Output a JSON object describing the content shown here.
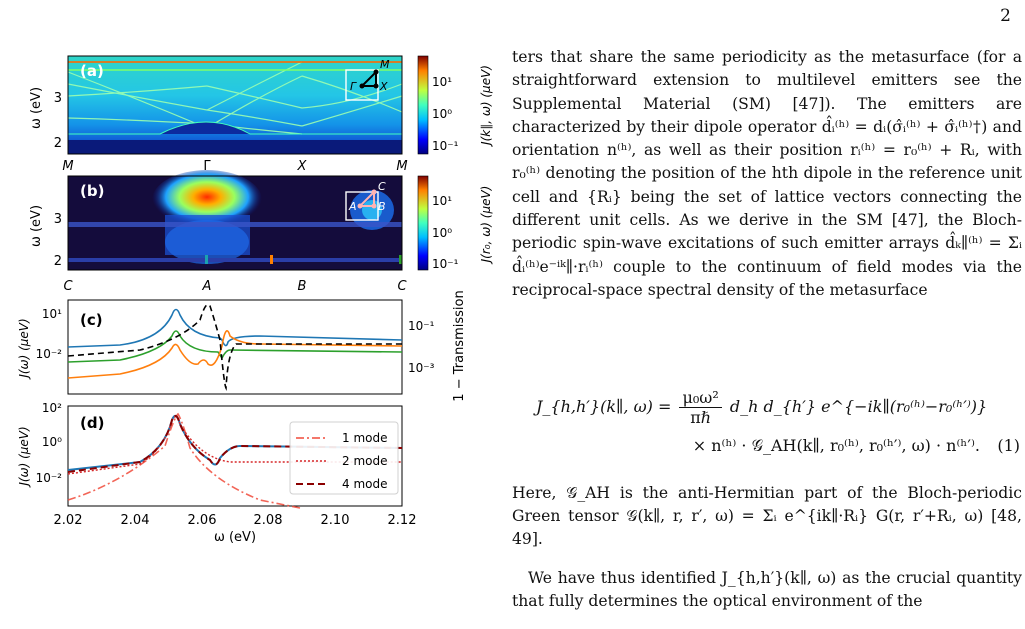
{
  "page_number": "2",
  "figure": {
    "panel_labels": [
      "(a)",
      "(b)",
      "(c)",
      "(d)"
    ],
    "a": {
      "ylabel": "ω (eV)",
      "yticks": [
        "2",
        "3"
      ],
      "xticks": [
        "M",
        "Γ",
        "X",
        "M"
      ],
      "colorbar_label": "J(k∥, ω) (μeV)",
      "colorbar_ticks": [
        "10¹",
        "10⁰",
        "10⁻¹"
      ],
      "inset_labels": [
        "Γ",
        "X",
        "M"
      ]
    },
    "b": {
      "ylabel": "ω (eV)",
      "yticks": [
        "2",
        "3"
      ],
      "xticks": [
        "C",
        "A",
        "B",
        "C"
      ],
      "colorbar_label": "J(r₀, ω) (μeV)",
      "colorbar_ticks": [
        "10¹",
        "10⁰",
        "10⁻¹"
      ],
      "inset_labels": [
        "A",
        "B",
        "C"
      ]
    },
    "c": {
      "ylabel": "J(ω) (μeV)",
      "yticks": [
        "10¹",
        "10⁻²"
      ],
      "right_label": "1 − Transmission",
      "right_ticks": [
        "10⁻¹",
        "10⁻³"
      ]
    },
    "d": {
      "ylabel": "J(ω) (μeV)",
      "yticks": [
        "10²",
        "10⁰",
        "10⁻²"
      ],
      "xlabel": "ω (eV)",
      "xticks": [
        "2.02",
        "2.04",
        "2.06",
        "2.08",
        "2.10",
        "2.12"
      ],
      "legend": [
        "1 mode",
        "2 mode",
        "4 mode"
      ]
    }
  },
  "body": {
    "p1": "ters that share the same periodicity as the metasurface (for a straightforward extension to multilevel emitters see the Supplemental Material (SM) [47]). The emitters are characterized by their dipole operator d̂ᵢ⁽ʰ⁾ = dᵢ(σ̂ᵢ⁽ʰ⁾ + σ̂ᵢ⁽ʰ⁾†) and orientation n⁽ʰ⁾, as well as their position rᵢ⁽ʰ⁾ = r₀⁽ʰ⁾ + Rᵢ, with r₀⁽ʰ⁾ denoting the position of the hth dipole in the reference unit cell and {Rᵢ} being the set of lattice vectors connecting the different unit cells. As we derive in the SM [47], the Bloch-periodic spin-wave excitations of such emitter arrays d̂ₖ∥⁽ʰ⁾ = Σᵢ d̂ᵢ⁽ʰ⁾e⁻ⁱᵏ∥·rᵢ⁽ʰ⁾ couple to the continuum of field modes via the reciprocal-space spectral density of the metasurface",
    "eq_lhs": "J_{h,h′}(k∥, ω) =",
    "eq_frac_num": "μ₀ω²",
    "eq_frac_den": "πℏ",
    "eq_rhs1": "d_h d_{h′} e^{−ik∥(r₀⁽ʰ⁾−r₀⁽ʰ′⁾)}",
    "eq_line2": "× n⁽ʰ⁾ · 𝒢_AH(k∥, r₀⁽ʰ⁾, r₀⁽ʰ′⁾, ω) · n⁽ʰ′⁾.",
    "eq_number": "(1)",
    "p2": "Here, 𝒢_AH is the anti-Hermitian part of the Bloch-periodic Green tensor 𝒢(k∥, r, r′, ω) = Σᵢ e^{ik∥·Rᵢ} G(r, r′+Rᵢ, ω) [48, 49].",
    "p3": "We have thus identified J_{h,h′}(k∥, ω) as the crucial quantity that fully determines the optical environment of the"
  }
}
